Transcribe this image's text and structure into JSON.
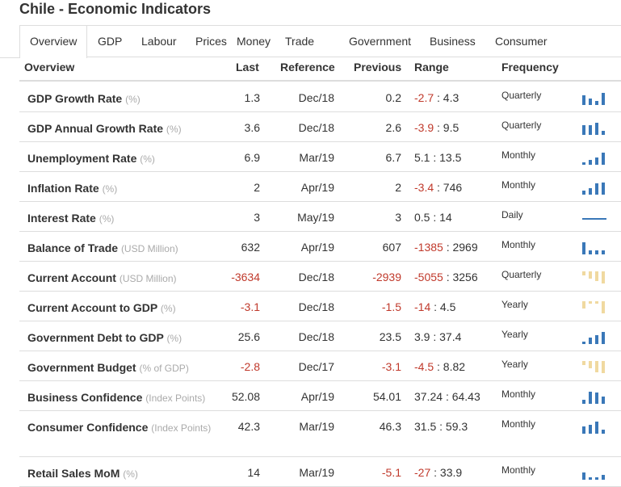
{
  "page": {
    "title": "Chile - Economic Indicators"
  },
  "tabs": [
    "Overview",
    "GDP",
    "Labour",
    "Prices",
    "Money",
    "Trade",
    "Government",
    "Business",
    "Consumer"
  ],
  "active_tab": 0,
  "columns": {
    "name": "Overview",
    "last": "Last",
    "reference": "Reference",
    "previous": "Previous",
    "range": "Range",
    "frequency": "Frequency"
  },
  "colors": {
    "positive_spark": "#3a78b8",
    "negative_spark": "#f0d9a0",
    "negative_text": "#c0392b"
  },
  "rows": [
    {
      "name": "GDP Growth Rate",
      "unit": "(%)",
      "last": "1.3",
      "reference": "Dec/18",
      "previous": "0.2",
      "range_low": "-2.7",
      "range_sep": ":",
      "range_high": "4.3",
      "frequency": "Quarterly",
      "spark": [
        0.8,
        0.55,
        0.3,
        1.0
      ],
      "spark_type": "bars"
    },
    {
      "name": "GDP Annual Growth Rate",
      "unit": "(%)",
      "last": "3.6",
      "reference": "Dec/18",
      "previous": "2.6",
      "range_low": "-3.9",
      "range_sep": ":",
      "range_high": "9.5",
      "frequency": "Quarterly",
      "spark": [
        0.8,
        0.8,
        1.0,
        0.3
      ],
      "spark_type": "bars"
    },
    {
      "name": "Unemployment Rate",
      "unit": "(%)",
      "last": "6.9",
      "reference": "Mar/19",
      "previous": "6.7",
      "range_low": "5.1",
      "range_sep": ":",
      "range_high": "13.5",
      "frequency": "Monthly",
      "spark": [
        0.2,
        0.4,
        0.6,
        1.0
      ],
      "spark_type": "bars"
    },
    {
      "name": "Inflation Rate",
      "unit": "(%)",
      "last": "2",
      "reference": "Apr/19",
      "previous": "2",
      "range_low": "-3.4",
      "range_sep": ":",
      "range_high": "746",
      "frequency": "Monthly",
      "spark": [
        0.3,
        0.55,
        0.9,
        1.0
      ],
      "spark_type": "bars"
    },
    {
      "name": "Interest Rate",
      "unit": "(%)",
      "last": "3",
      "reference": "May/19",
      "previous": "3",
      "range_low": "0.5",
      "range_sep": ":",
      "range_high": "14",
      "frequency": "Daily",
      "spark": [],
      "spark_type": "line"
    },
    {
      "name": "Balance of Trade",
      "unit": "(USD Million)",
      "last": "632",
      "reference": "Apr/19",
      "previous": "607",
      "range_low": "-1385",
      "range_sep": ":",
      "range_high": "2969",
      "frequency": "Monthly",
      "spark": [
        1.0,
        0.3,
        0.3,
        0.3
      ],
      "spark_type": "bars"
    },
    {
      "name": "Current Account",
      "unit": "(USD Million)",
      "last": "-3634",
      "reference": "Dec/18",
      "previous": "-2939",
      "range_low": "-5055",
      "range_sep": ":",
      "range_high": "3256",
      "frequency": "Quarterly",
      "spark": [
        0.3,
        0.6,
        0.8,
        1.0
      ],
      "spark_type": "neg"
    },
    {
      "name": "Current Account to GDP",
      "unit": "(%)",
      "last": "-3.1",
      "reference": "Dec/18",
      "previous": "-1.5",
      "range_low": "-14",
      "range_sep": ":",
      "range_high": "4.5",
      "frequency": "Yearly",
      "spark": [
        0.6,
        0.2,
        0.2,
        1.0
      ],
      "spark_type": "neg"
    },
    {
      "name": "Government Debt to GDP",
      "unit": "(%)",
      "last": "25.6",
      "reference": "Dec/18",
      "previous": "23.5",
      "range_low": "3.9",
      "range_sep": ":",
      "range_high": "37.4",
      "frequency": "Yearly",
      "spark": [
        0.2,
        0.5,
        0.7,
        1.0
      ],
      "spark_type": "bars"
    },
    {
      "name": "Government Budget",
      "unit": "(% of GDP)",
      "last": "-2.8",
      "reference": "Dec/17",
      "previous": "-3.1",
      "range_low": "-4.5",
      "range_sep": ":",
      "range_high": "8.82",
      "frequency": "Yearly",
      "spark": [
        0.3,
        0.6,
        0.9,
        1.0
      ],
      "spark_type": "neg"
    },
    {
      "name": "Business Confidence",
      "unit": "(Index Points)",
      "last": "52.08",
      "reference": "Apr/19",
      "previous": "54.01",
      "range_low": "37.24",
      "range_sep": ":",
      "range_high": "64.43",
      "frequency": "Monthly",
      "spark": [
        0.3,
        1.0,
        0.9,
        0.6
      ],
      "spark_type": "bars"
    },
    {
      "name": "Consumer Confidence",
      "unit": "(Index Points)",
      "last": "42.3",
      "reference": "Mar/19",
      "previous": "46.3",
      "range_low": "31.5",
      "range_sep": ":",
      "range_high": "59.3",
      "frequency": "Monthly",
      "spark": [
        0.6,
        0.7,
        1.0,
        0.3
      ],
      "spark_type": "bars"
    },
    {
      "name": "Retail Sales MoM",
      "unit": "(%)",
      "last": "14",
      "reference": "Mar/19",
      "previous": "-5.1",
      "range_low": "-27",
      "range_sep": ":",
      "range_high": "33.9",
      "frequency": "Monthly",
      "spark": [
        0.6,
        0.2,
        0.2,
        0.4
      ],
      "spark_type": "bars"
    }
  ]
}
